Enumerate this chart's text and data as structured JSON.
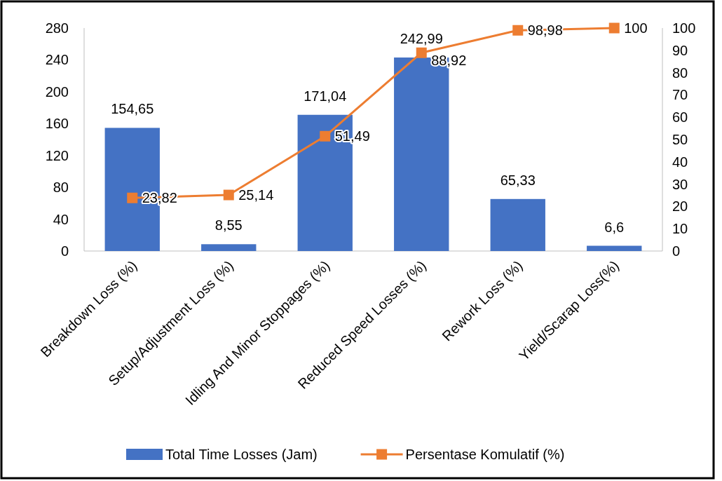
{
  "chart_data": {
    "type": "bar",
    "categories": [
      "Breakdown Loss (%)",
      "Setup/Adjustment Loss (%)",
      "Idling And Minor Stoppages (%)",
      "Reduced Speed Losses (%)",
      "Rework Loss (%)",
      "Yield/Scarap Loss(%)"
    ],
    "series": [
      {
        "name": "Total Time Losses (Jam)",
        "color": "#4472c4",
        "values": [
          154.65,
          8.55,
          171.04,
          242.99,
          65.33,
          6.6
        ],
        "value_labels": [
          "154,65",
          "8,55",
          "171,04",
          "242,99",
          "65,33",
          "6,6"
        ]
      },
      {
        "name": "Persentase Komulatif (%)",
        "type": "line",
        "axis": "y2",
        "color": "#ed7d31",
        "values": [
          23.82,
          25.14,
          51.49,
          88.92,
          98.98,
          100
        ],
        "value_labels": [
          "23,82",
          "25,14",
          "51,49",
          "88,92",
          "98,98",
          "100"
        ]
      }
    ],
    "ylim": [
      0,
      280
    ],
    "yticks": [
      0,
      40,
      80,
      120,
      160,
      200,
      240,
      280
    ],
    "y2lim": [
      0,
      100
    ],
    "y2ticks": [
      0,
      10,
      20,
      30,
      40,
      50,
      60,
      70,
      80,
      90,
      100
    ],
    "marker": "square",
    "legend": "bottom",
    "grid": false
  }
}
